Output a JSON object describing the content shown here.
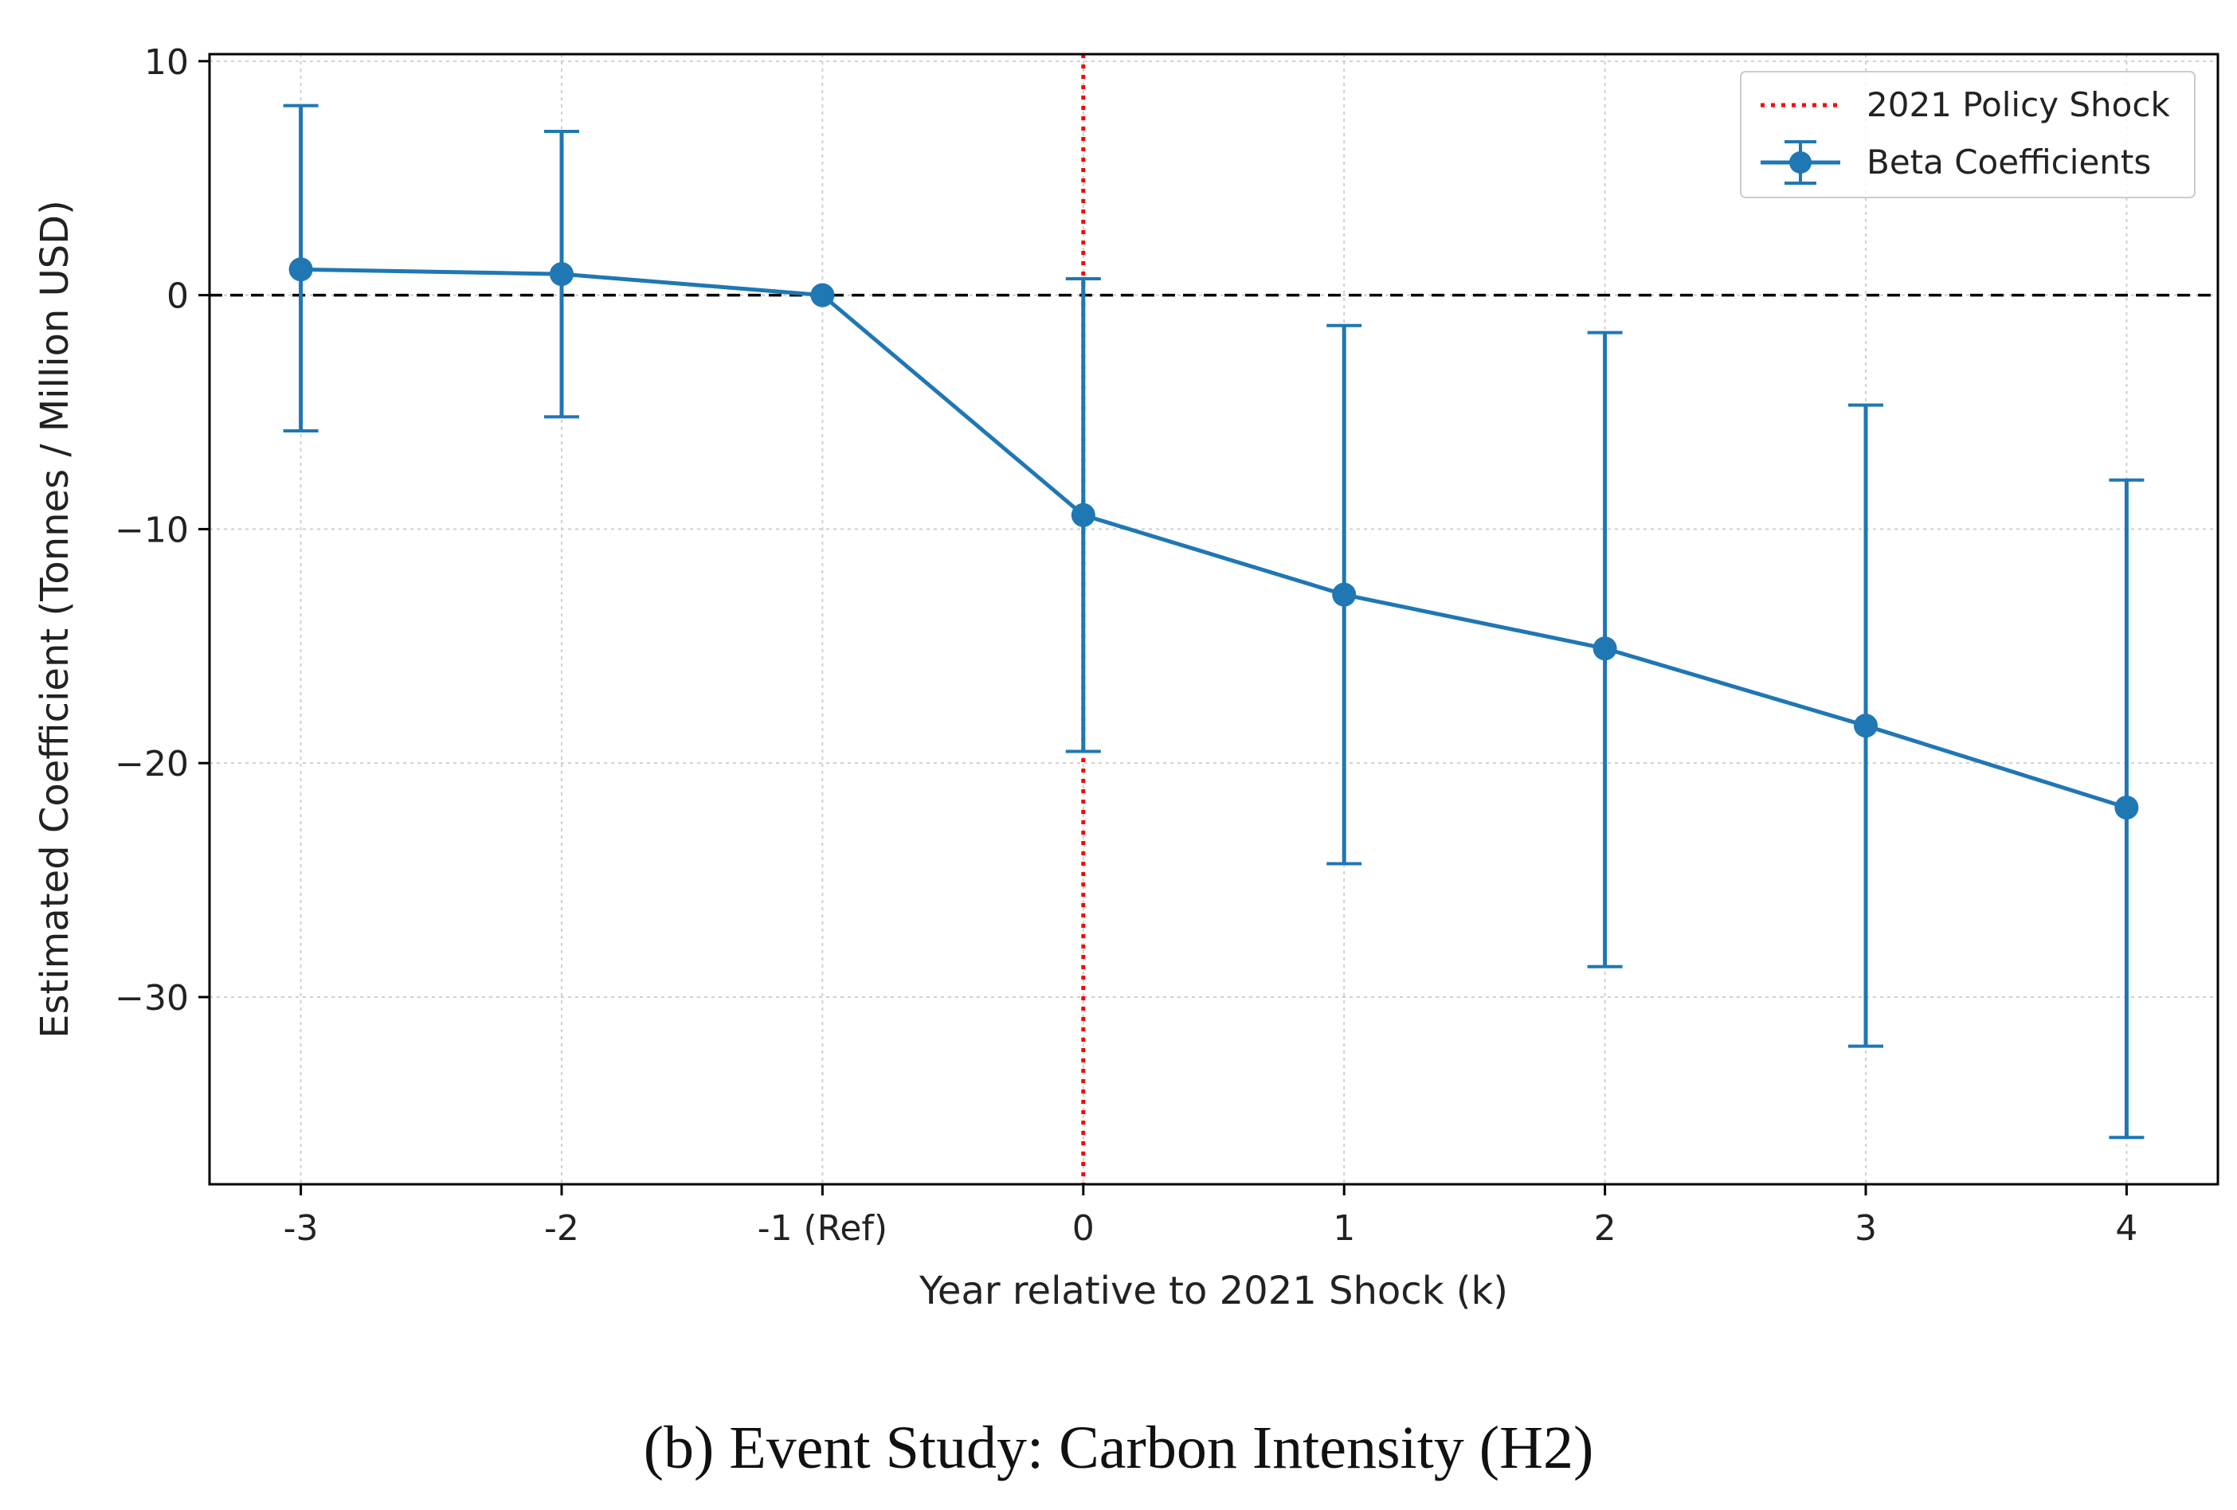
{
  "caption": "(b) Event Study: Carbon Intensity (H2)",
  "chart_data": {
    "type": "line",
    "xlabel": "Year relative to 2021 Shock (k)",
    "ylabel": "Estimated Coefficient (Tonnes / Million USD)",
    "categories": [
      "-3",
      "-2",
      "-1 (Ref)",
      "0",
      "1",
      "2",
      "3",
      "4"
    ],
    "x": [
      -3,
      -2,
      -1,
      0,
      1,
      2,
      3,
      4
    ],
    "xlim": [
      -3.35,
      4.35
    ],
    "ylim": [
      -38,
      10.3
    ],
    "yticks": [
      10,
      0,
      -10,
      -20,
      -30
    ],
    "ytick_labels": [
      "10",
      "0",
      "−10",
      "−20",
      "−30"
    ],
    "grid": true,
    "legend_position": "top-right",
    "reference_lines": [
      {
        "orientation": "vertical",
        "value": 0,
        "style": "dotted",
        "color": "#ff0000",
        "label": "2021 Policy Shock"
      },
      {
        "orientation": "horizontal",
        "value": 0,
        "style": "dashed",
        "color": "#000000"
      }
    ],
    "series": [
      {
        "name": "Beta Coefficients",
        "color": "#1f77b4",
        "values": [
          1.1,
          0.9,
          0.0,
          -9.4,
          -12.8,
          -15.1,
          -18.4,
          -21.9
        ],
        "ci_lower": [
          -5.8,
          -5.2,
          0.0,
          -19.5,
          -24.3,
          -28.7,
          -32.1,
          -36.0
        ],
        "ci_upper": [
          8.1,
          7.0,
          0.0,
          0.7,
          -1.3,
          -1.6,
          -4.7,
          -7.9
        ]
      }
    ]
  }
}
